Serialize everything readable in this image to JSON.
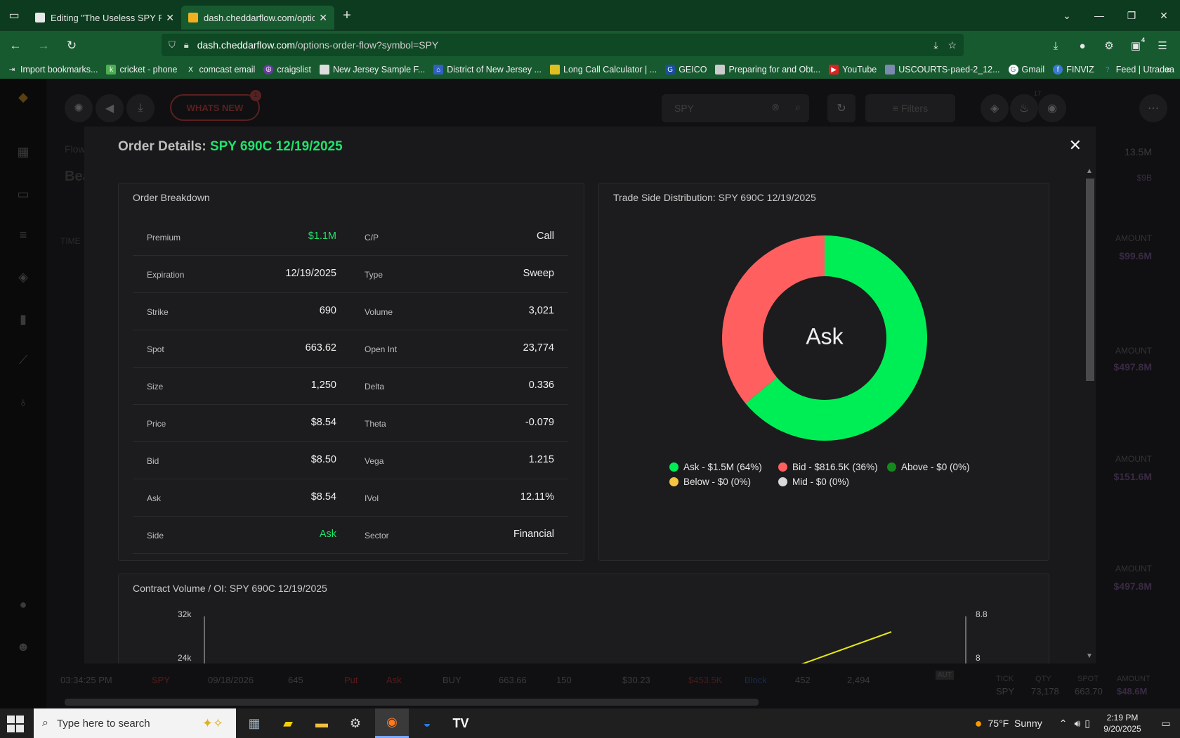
{
  "browser": {
    "tabs": [
      {
        "title": "Editing \"The Useless SPY Report",
        "active": false
      },
      {
        "title": "dash.cheddarflow.com/options-",
        "active": true
      }
    ],
    "url_host": "dash.cheddarflow.com",
    "url_path": "/options-order-flow?symbol=SPY",
    "extensions_badge": "4",
    "bookmarks": [
      "Import bookmarks...",
      "cricket - phone",
      "comcast email",
      "craigslist",
      "New Jersey Sample F...",
      "District of New Jersey ...",
      "Long Call Calculator | ...",
      "GEICO",
      "Preparing for and Obt...",
      "YouTube",
      "USCOURTS-paed-2_12...",
      "Gmail",
      "FINVIZ",
      "Feed | Utradea"
    ]
  },
  "app_bg": {
    "whats_new": "WHATS NEW",
    "whats_new_badge": "1",
    "search_value": "SPY",
    "filters_label": "Filters",
    "notif_badge": "17",
    "breadcrumb": "Flow",
    "heading_partial": "Bea",
    "time_header": "TIME",
    "right_total": "13.5M",
    "right_sub": "$9B",
    "right_cards": [
      {
        "label": "AMOUNT",
        "value": "$99.6M"
      },
      {
        "label": "AMOUNT",
        "value": "$497.8M"
      },
      {
        "label": "AMOUNT",
        "value": "$151.6M"
      },
      {
        "label": "AMOUNT",
        "value": "$497.8M"
      }
    ],
    "right_bottom": {
      "tick_label": "TICK",
      "qty_label": "QTY",
      "spot_label": "SPOT",
      "amount_label": "AMOUNT",
      "tick": "SPY",
      "qty": "73,178",
      "spot": "663.70",
      "amount": "$48.6M"
    },
    "bottom_row": [
      "03:34:25 PM",
      "SPY",
      "09/18/2026",
      "645",
      "Put",
      "Ask",
      "BUY",
      "663.66",
      "150",
      "$30.23",
      "$453.5K",
      "Block",
      "452",
      "2,494",
      "AUT"
    ]
  },
  "modal": {
    "title_prefix": "Order Details:",
    "title_symbol": "SPY 690C 12/19/2025",
    "breakdown": {
      "title": "Order Breakdown",
      "rows": [
        {
          "k1": "Premium",
          "v1": "$1.1M",
          "k2": "C/P",
          "v2": "Call"
        },
        {
          "k1": "Expiration",
          "v1": "12/19/2025",
          "k2": "Type",
          "v2": "Sweep"
        },
        {
          "k1": "Strike",
          "v1": "690",
          "k2": "Volume",
          "v2": "3,021"
        },
        {
          "k1": "Spot",
          "v1": "663.62",
          "k2": "Open Int",
          "v2": "23,774"
        },
        {
          "k1": "Size",
          "v1": "1,250",
          "k2": "Delta",
          "v2": "0.336"
        },
        {
          "k1": "Price",
          "v1": "$8.54",
          "k2": "Theta",
          "v2": "-0.079"
        },
        {
          "k1": "Bid",
          "v1": "$8.50",
          "k2": "Vega",
          "v2": "1.215"
        },
        {
          "k1": "Ask",
          "v1": "$8.54",
          "k2": "IVol",
          "v2": "12.11%"
        },
        {
          "k1": "Side",
          "v1": "Ask",
          "k2": "Sector",
          "v2": "Financial"
        }
      ]
    },
    "distribution": {
      "title": "Trade Side Distribution: SPY 690C 12/19/2025",
      "center_label": "Ask"
    },
    "volume_oi": {
      "title": "Contract Volume / OI: SPY 690C 12/19/2025"
    }
  },
  "chart_data": [
    {
      "type": "pie",
      "title": "Trade Side Distribution: SPY 690C 12/19/2025",
      "categories": [
        "Ask",
        "Bid",
        "Above",
        "Below",
        "Mid"
      ],
      "values": [
        64,
        36,
        0,
        0,
        0
      ],
      "labels": [
        "Ask - $1.5M (64%)",
        "Bid - $816.5K (36%)",
        "Above - $0 (0%)",
        "Below - $0 (0%)",
        "Mid - $0 (0%)"
      ],
      "colors": [
        "#00ee55",
        "#ff5f5f",
        "#138a1c",
        "#f5c542",
        "#d9d9d9"
      ],
      "center_text": "Ask",
      "legend": "bottom"
    },
    {
      "type": "line",
      "title": "Contract Volume / OI: SPY 690C 12/19/2025",
      "left_ticks": [
        "32k",
        "24k"
      ],
      "right_ticks": [
        "8.8",
        "8"
      ],
      "series": [
        {
          "color": "#e6e61a",
          "values": []
        }
      ]
    }
  ],
  "taskbar": {
    "search_placeholder": "Type here to search",
    "weather": "75°F  Sunny",
    "time": "2:19 PM",
    "date": "9/20/2025"
  }
}
